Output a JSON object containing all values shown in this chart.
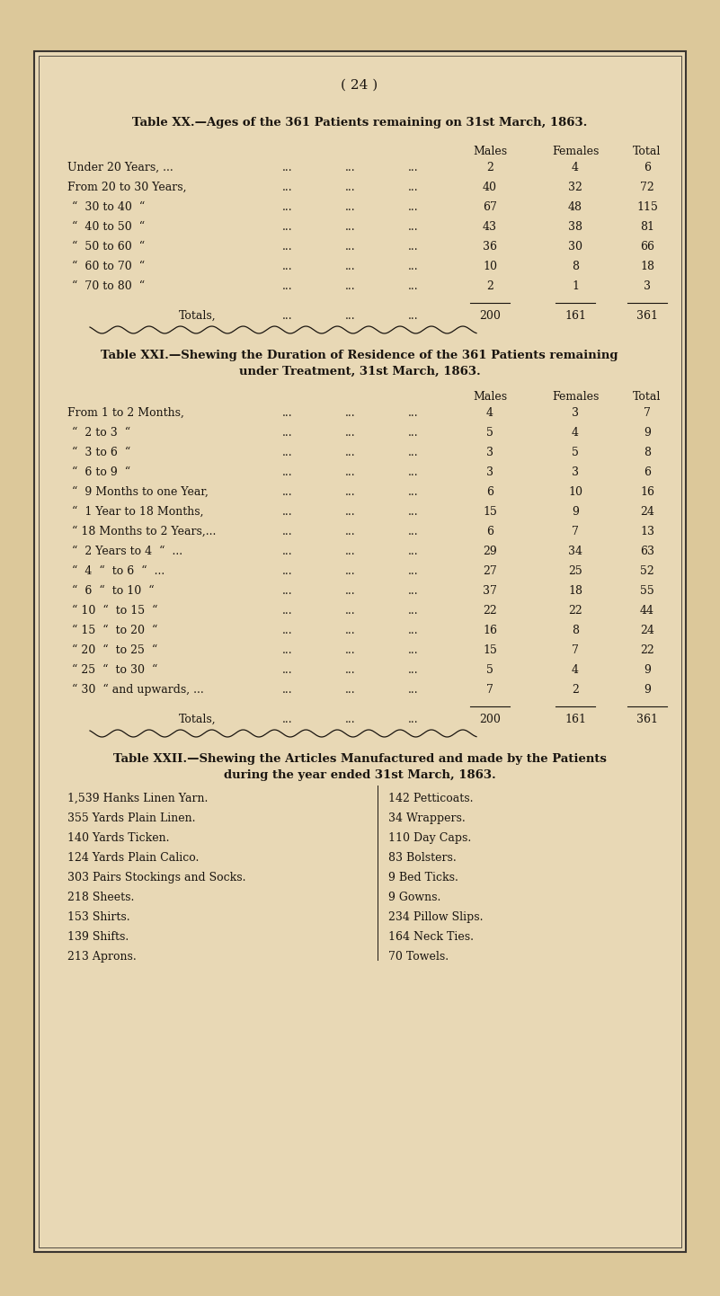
{
  "bg_color": "#e8d8b5",
  "page_bg": "#dcc89a",
  "border_color": "#3a3530",
  "text_color": "#1a1510",
  "page_number": "( 24 )",
  "table20_title": "Table XX.—Ages of the 361 Patients remaining on 31st March, 1863.",
  "table21_title1": "Table XXI.—Shewing the Duration of Residence of the 361 Patients remaining",
  "table21_title2": "under Treatment, 31st March, 1863.",
  "table22_title1": "Table XXII.—Shewing the Articles Manufactured and made by the Patients",
  "table22_title2": "during the year ended 31st March, 1863.",
  "table20_rows": [
    [
      "Under 20 Years, ...",
      "2",
      "4",
      "6"
    ],
    [
      "From 20 to 30 Years,",
      "40",
      "32",
      "72"
    ],
    [
      "“  30 to 40  “",
      "67",
      "48",
      "115"
    ],
    [
      "“  40 to 50  “",
      "43",
      "38",
      "81"
    ],
    [
      "“  50 to 60  “",
      "36",
      "30",
      "66"
    ],
    [
      "“  60 to 70  “",
      "10",
      "8",
      "18"
    ],
    [
      "“  70 to 80  “",
      "2",
      "1",
      "3"
    ]
  ],
  "table20_totals": [
    "200",
    "161",
    "361"
  ],
  "table21_rows": [
    [
      "From 1 to 2 Months,",
      "4",
      "3",
      "7"
    ],
    [
      "“  2 to 3  “",
      "5",
      "4",
      "9"
    ],
    [
      "“  3 to 6  “",
      "3",
      "5",
      "8"
    ],
    [
      "“  6 to 9  “",
      "3",
      "3",
      "6"
    ],
    [
      "“  9 Months to one Year,",
      "6",
      "10",
      "16"
    ],
    [
      "“  1 Year to 18 Months,",
      "15",
      "9",
      "24"
    ],
    [
      "“ 18 Months to 2 Years,...",
      "6",
      "7",
      "13"
    ],
    [
      "“  2 Years to 4  “  ...",
      "29",
      "34",
      "63"
    ],
    [
      "“  4  “  to 6  “  ...",
      "27",
      "25",
      "52"
    ],
    [
      "“  6  “  to 10  “",
      "37",
      "18",
      "55"
    ],
    [
      "“ 10  “  to 15  “",
      "22",
      "22",
      "44"
    ],
    [
      "“ 15  “  to 20  “",
      "16",
      "8",
      "24"
    ],
    [
      "“ 20  “  to 25  “",
      "15",
      "7",
      "22"
    ],
    [
      "“ 25  “  to 30  “",
      "5",
      "4",
      "9"
    ],
    [
      "“ 30  “ and upwards, ...",
      "7",
      "2",
      "9"
    ]
  ],
  "table21_totals": [
    "200",
    "161",
    "361"
  ],
  "table22_left": [
    "1,539 Hanks Linen Yarn.",
    "355 Yards Plain Linen.",
    "140 Yards Ticken.",
    "124 Yards Plain Calico.",
    "303 Pairs Stockings and Socks.",
    "218 Sheets.",
    "153 Shirts.",
    "139 Shifts.",
    "213 Aprons."
  ],
  "table22_right": [
    "142 Petticoats.",
    "34 Wrappers.",
    "110 Day Caps.",
    "83 Bolsters.",
    "9 Bed Ticks.",
    "9 Gowns.",
    "234 Pillow Slips.",
    "164 Neck Ties.",
    "70 Towels."
  ]
}
